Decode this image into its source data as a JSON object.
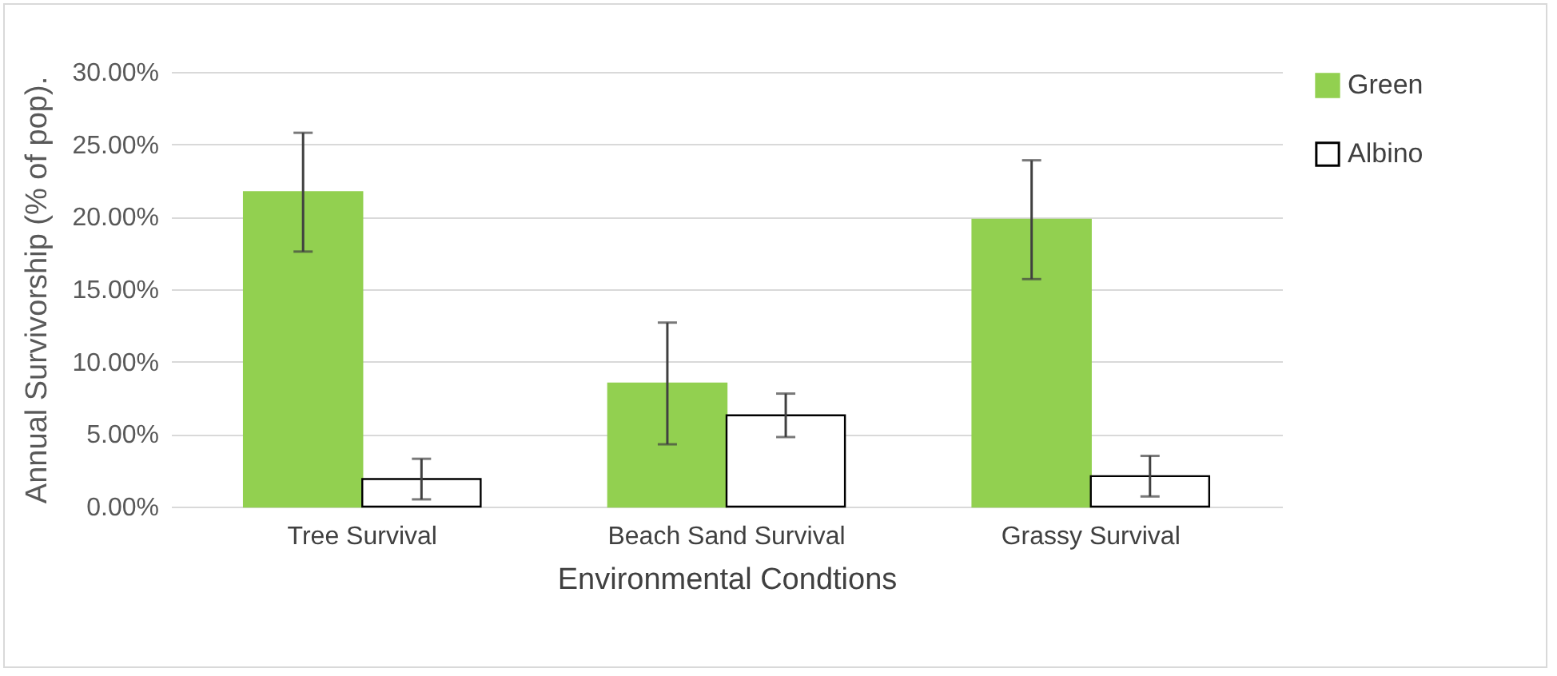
{
  "chart_data": {
    "type": "bar",
    "xlabel": "Environmental Condtions",
    "ylabel": "Annual Survivorship (% of pop).",
    "categories": [
      "Tree Survival",
      "Beach Sand Survival",
      "Grassy Survival"
    ],
    "series": [
      {
        "name": "Green",
        "color": "#92d050",
        "values": [
          21.7,
          8.5,
          19.8
        ],
        "errors": [
          4.1,
          4.2,
          4.1
        ]
      },
      {
        "name": "Albino",
        "color": "#ffffff",
        "values": [
          1.9,
          6.3,
          2.1
        ],
        "errors": [
          1.4,
          1.5,
          1.4
        ]
      }
    ],
    "ylim": [
      0,
      30
    ],
    "yticks": [
      {
        "value": 0,
        "label": "0.00%"
      },
      {
        "value": 5,
        "label": "5.00%"
      },
      {
        "value": 10,
        "label": "10.00%"
      },
      {
        "value": 15,
        "label": "15.00%"
      },
      {
        "value": 20,
        "label": "20.00%"
      },
      {
        "value": 25,
        "label": "25.00%"
      },
      {
        "value": 30,
        "label": "30.00%"
      }
    ],
    "grid": "y",
    "legend": "right"
  }
}
